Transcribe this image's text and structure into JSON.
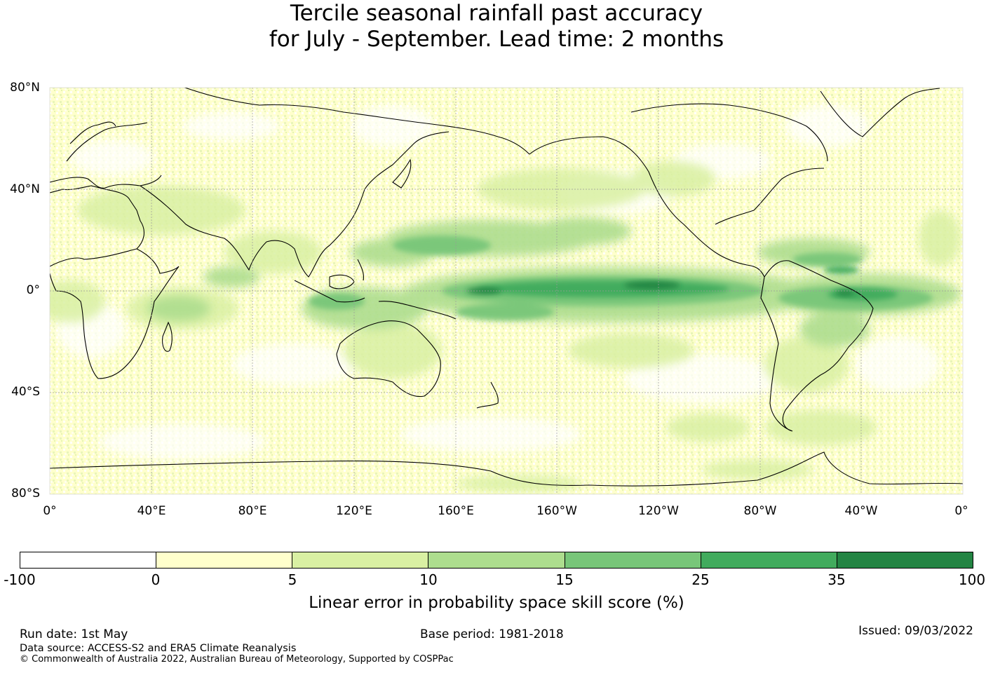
{
  "title": {
    "line1": "Tercile seasonal rainfall past accuracy",
    "line2": "for July - September. Lead time: 2 months"
  },
  "map": {
    "lat_labels": [
      "80°N",
      "40°N",
      "0°",
      "40°S",
      "80°S"
    ],
    "lon_labels": [
      "0°",
      "40°E",
      "80°E",
      "120°E",
      "160°E",
      "160°W",
      "120°W",
      "80°W",
      "40°W",
      "0°"
    ],
    "gridlines": true,
    "coastlines": true
  },
  "colorbar": {
    "ticks": [
      "-100",
      "0",
      "5",
      "10",
      "15",
      "25",
      "35",
      "100"
    ],
    "colors": [
      "#ffffff",
      "#ffffcc",
      "#d9f0a3",
      "#addd8e",
      "#78c679",
      "#41ab5d",
      "#238443"
    ],
    "label": "Linear error in probability space skill score (%)"
  },
  "footer": {
    "run_date": "Run date: 1st May",
    "base_period": "Base period: 1981-2018",
    "issued": "Issued: 09/03/2022",
    "data_source": "Data source: ACCESS-S2 and ERA5 Climate Reanalysis",
    "copyright": "© Commonwealth of Australia 2022, Australian Bureau of Meteorology, Supported by COSPPac"
  }
}
